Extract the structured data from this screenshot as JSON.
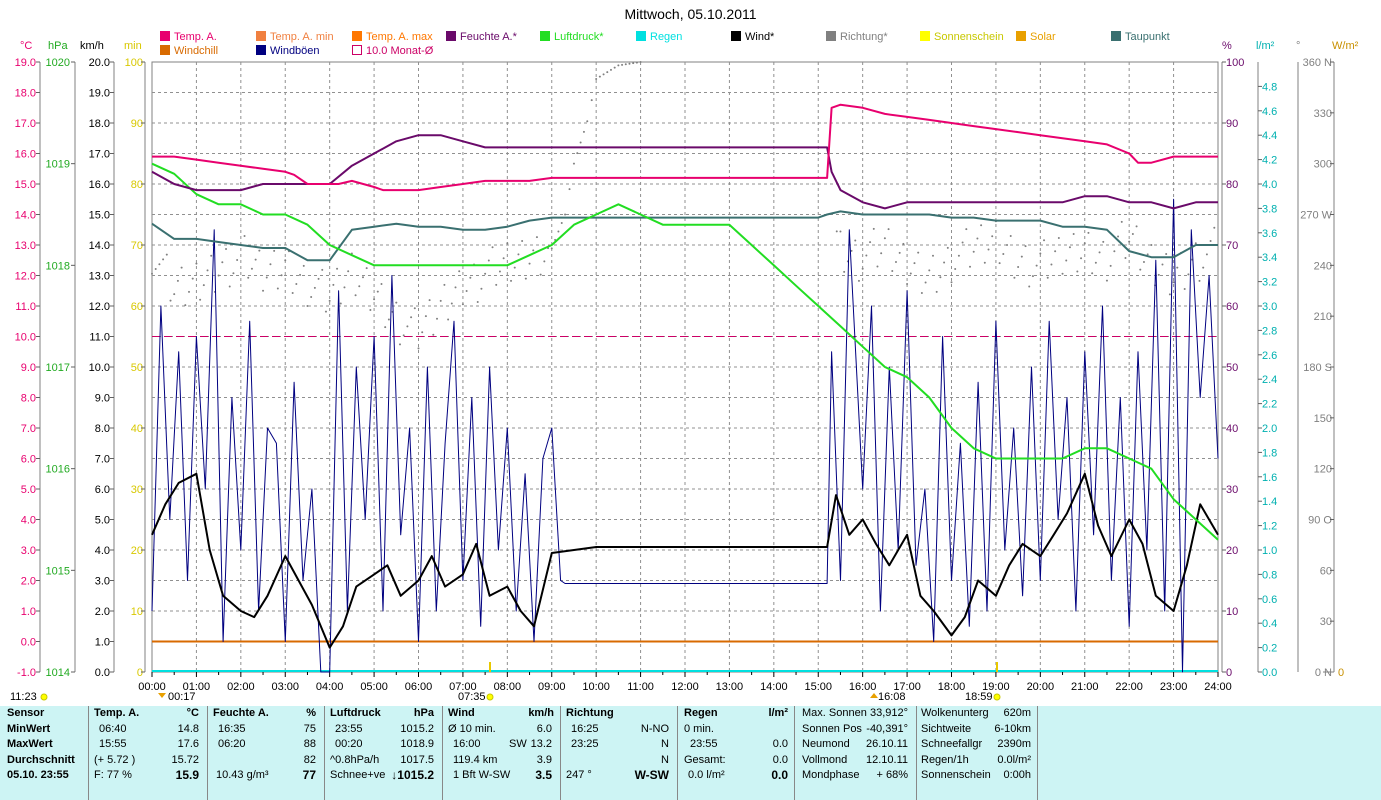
{
  "title": "Mittwoch, 05.10.2011",
  "legend": [
    {
      "label": "Temp. A.",
      "color": "#e8006e"
    },
    {
      "label": "Windchill",
      "color": "#d86a00"
    },
    {
      "label": "Temp. A. min",
      "color": "#f08040"
    },
    {
      "label": "Windböen",
      "color": "#000080"
    },
    {
      "label": "Temp. A. max",
      "color": "#ff7700"
    },
    {
      "label": "10.0 Monat-Ø",
      "color": "#cc0066",
      "open": true
    },
    {
      "label": "Feuchte A.*",
      "color": "#6a0a6a"
    },
    {
      "label": "Luftdruck*",
      "color": "#22dd22"
    },
    {
      "label": "Regen",
      "color": "#00e0e0"
    },
    {
      "label": "Wind*",
      "color": "#000000"
    },
    {
      "label": "Richtung*",
      "color": "#808080"
    },
    {
      "label": "Sonnenschein",
      "color": "#ffff00"
    },
    {
      "label": "Solar",
      "color": "#e8a000"
    },
    {
      "label": "Taupunkt",
      "color": "#3a7070"
    }
  ],
  "axes": {
    "temp": {
      "header": "°C",
      "color": "#e8006e",
      "ticks": [
        "19.0",
        "18.0",
        "17.0",
        "16.0",
        "15.0",
        "14.0",
        "13.0",
        "12.0",
        "11.0",
        "10.0",
        "9.0",
        "8.0",
        "7.0",
        "6.0",
        "5.0",
        "4.0",
        "3.0",
        "2.0",
        "1.0",
        "0.0",
        "-1.0"
      ]
    },
    "hpa": {
      "header": "hPa",
      "color": "#22aa22",
      "ticks": [
        "1020",
        "1019",
        "1018",
        "1017",
        "1016",
        "1015",
        "1014"
      ]
    },
    "kmh": {
      "header": "km/h",
      "color": "#000000",
      "ticks": [
        "20.0",
        "19.0",
        "18.0",
        "17.0",
        "16.0",
        "15.0",
        "14.0",
        "13.0",
        "12.0",
        "11.0",
        "10.0",
        "9.0",
        "8.0",
        "7.0",
        "6.0",
        "5.0",
        "4.0",
        "3.0",
        "2.0",
        "1.0",
        "0.0"
      ]
    },
    "min": {
      "header": "min",
      "color": "#d8c800",
      "ticks": [
        "100",
        "90",
        "80",
        "70",
        "60",
        "50",
        "40",
        "30",
        "20",
        "10",
        "0"
      ]
    },
    "pct": {
      "header": "%",
      "color": "#6a0a6a",
      "ticks": [
        "100",
        "90",
        "80",
        "70",
        "60",
        "50",
        "40",
        "30",
        "20",
        "10",
        "0"
      ]
    },
    "lm2": {
      "header": "l/m²",
      "color": "#00b0b0",
      "ticks": [
        "4.8",
        "4.6",
        "4.4",
        "4.2",
        "4.0",
        "3.8",
        "3.6",
        "3.4",
        "3.2",
        "3.0",
        "2.8",
        "2.6",
        "2.4",
        "2.2",
        "2.0",
        "1.8",
        "1.6",
        "1.4",
        "1.2",
        "1.0",
        "0.8",
        "0.6",
        "0.4",
        "0.2",
        "0.0"
      ]
    },
    "deg": {
      "header": "°",
      "color": "#808080",
      "ticks": [
        "360 N",
        "330",
        "300",
        "270 W",
        "240",
        "210",
        "180 S",
        "150",
        "120",
        "90  O",
        "60",
        "30",
        "0  N"
      ]
    },
    "wm2": {
      "header": "W/m²",
      "color": "#c89000",
      "ticks": [
        "0"
      ]
    },
    "x_ticks": [
      "00:00",
      "01:00",
      "02:00",
      "03:00",
      "04:00",
      "05:00",
      "06:00",
      "07:00",
      "08:00",
      "09:00",
      "10:00",
      "11:00",
      "12:00",
      "13:00",
      "14:00",
      "15:00",
      "16:00",
      "17:00",
      "18:00",
      "19:00",
      "20:00",
      "21:00",
      "22:00",
      "23:00",
      "24:00"
    ]
  },
  "markers": {
    "time_1123": "11:23",
    "time_0017": "00:17",
    "time_0735": "07:35",
    "time_1608": "16:08",
    "time_1859": "18:59"
  },
  "chart_data": {
    "type": "line",
    "title": "Mittwoch, 05.10.2011",
    "x_unit": "hours",
    "xlim": [
      0,
      24
    ],
    "series": [
      {
        "name": "Temp. A.",
        "unit": "°C",
        "x": [
          0,
          0.5,
          1,
          1.5,
          2,
          2.5,
          3,
          3.2,
          3.5,
          4,
          4.2,
          4.5,
          5,
          5.2,
          5.5,
          6,
          6.5,
          7,
          7.5,
          8,
          8.5,
          9,
          10,
          11,
          12,
          13,
          14,
          15,
          15.2,
          15.3,
          15.5,
          16,
          16.5,
          17,
          17.5,
          18,
          18.5,
          19,
          19.5,
          20,
          20.5,
          21,
          21.5,
          22,
          22.2,
          22.5,
          23,
          23.5,
          24
        ],
        "y": [
          15.9,
          15.9,
          15.8,
          15.7,
          15.6,
          15.5,
          15.4,
          15.3,
          15.0,
          15.0,
          15.0,
          15.1,
          14.9,
          14.8,
          14.8,
          14.8,
          14.9,
          15.0,
          15.1,
          15.1,
          15.1,
          15.2,
          15.2,
          15.2,
          15.2,
          15.2,
          15.2,
          15.2,
          15.2,
          17.5,
          17.6,
          17.5,
          17.3,
          17.2,
          17.1,
          17.0,
          16.9,
          16.8,
          16.7,
          16.6,
          16.5,
          16.4,
          16.3,
          16.0,
          15.7,
          15.7,
          15.9,
          15.9,
          15.9
        ]
      },
      {
        "name": "Feuchte A.*",
        "unit": "%",
        "x": [
          0,
          0.5,
          1,
          1.5,
          2,
          2.5,
          3,
          3.5,
          4,
          4.5,
          5,
          5.5,
          6,
          6.5,
          7,
          7.5,
          8,
          8.5,
          9,
          10,
          11,
          12,
          13,
          14,
          15,
          15.2,
          15.3,
          15.5,
          16,
          16.5,
          17,
          17.5,
          18,
          18.5,
          19,
          19.5,
          20,
          20.5,
          21,
          21.5,
          22,
          22.5,
          23,
          23.5,
          24
        ],
        "y": [
          82,
          80,
          79,
          79,
          79,
          80,
          80,
          80,
          80,
          83,
          85,
          87,
          88,
          88,
          87,
          86,
          86,
          86,
          86,
          86,
          86,
          86,
          86,
          86,
          86,
          86,
          82,
          79,
          77,
          76,
          77,
          77,
          77,
          77,
          77,
          77,
          77,
          77,
          78,
          78,
          77,
          77,
          76,
          77,
          77
        ]
      },
      {
        "name": "Luftdruck*",
        "unit": "hPa",
        "x": [
          0,
          0.5,
          1,
          1.5,
          2,
          2.5,
          3,
          3.5,
          4,
          4.5,
          5,
          5.5,
          6,
          6.5,
          7,
          7.5,
          8,
          8.5,
          9,
          9.5,
          10,
          10.5,
          11,
          11.5,
          12,
          12.5,
          13,
          13.5,
          14,
          14.5,
          15,
          15.5,
          16,
          16.5,
          17,
          17.5,
          18,
          18.5,
          19,
          19.5,
          20,
          20.5,
          21,
          21.5,
          22,
          22.5,
          23,
          23.5,
          24
        ],
        "y": [
          1019.0,
          1018.9,
          1018.7,
          1018.6,
          1018.6,
          1018.5,
          1018.5,
          1018.4,
          1018.2,
          1018.1,
          1018.0,
          1018.0,
          1018.0,
          1018.0,
          1018.0,
          1018.0,
          1018.0,
          1018.1,
          1018.2,
          1018.4,
          1018.5,
          1018.6,
          1018.5,
          1018.4,
          1018.4,
          1018.4,
          1018.4,
          1018.2,
          1018.0,
          1017.8,
          1017.6,
          1017.4,
          1017.2,
          1017.0,
          1016.9,
          1016.7,
          1016.4,
          1016.2,
          1016.1,
          1016.1,
          1016.1,
          1016.1,
          1016.2,
          1016.2,
          1016.1,
          1016.0,
          1015.7,
          1015.5,
          1015.3
        ]
      },
      {
        "name": "Taupunkt",
        "unit": "°C",
        "x": [
          0,
          0.5,
          1,
          1.5,
          2,
          2.5,
          3,
          3.5,
          4,
          4.5,
          5,
          5.5,
          6,
          6.5,
          7,
          7.5,
          8,
          8.5,
          9,
          10,
          11,
          12,
          13,
          14,
          15,
          15.2,
          15.5,
          16,
          16.5,
          17,
          17.5,
          18,
          18.5,
          19,
          19.5,
          20,
          20.5,
          21,
          21.5,
          22,
          22.5,
          23,
          23.5,
          24
        ],
        "y": [
          13.7,
          13.2,
          13.2,
          13.1,
          13.0,
          12.9,
          12.9,
          12.5,
          12.5,
          13.5,
          13.6,
          13.7,
          13.6,
          13.6,
          13.5,
          13.5,
          13.6,
          13.8,
          13.9,
          13.9,
          13.9,
          13.9,
          13.9,
          13.9,
          13.9,
          14.0,
          14.1,
          14.0,
          14.0,
          14.0,
          14.0,
          13.9,
          13.9,
          13.8,
          13.8,
          13.8,
          13.6,
          13.6,
          13.5,
          12.8,
          12.6,
          12.6,
          13.0,
          13.0
        ]
      },
      {
        "name": "Wind*",
        "unit": "km/h",
        "x": [
          0,
          0.3,
          0.6,
          1,
          1.3,
          1.6,
          2,
          2.3,
          2.6,
          3,
          3.3,
          3.6,
          4,
          4.3,
          4.6,
          5,
          5.3,
          5.6,
          6,
          6.3,
          6.6,
          7,
          7.3,
          7.6,
          8,
          8.3,
          8.6,
          9,
          9.5,
          10,
          11,
          12,
          13,
          14,
          15,
          15.2,
          15.4,
          15.7,
          16,
          16.3,
          16.6,
          17,
          17.3,
          17.6,
          18,
          18.3,
          18.6,
          19,
          19.3,
          19.6,
          20,
          20.3,
          20.6,
          21,
          21.3,
          21.6,
          22,
          22.3,
          22.6,
          23,
          23.3,
          23.6,
          24
        ],
        "y": [
          4.5,
          5.5,
          6.2,
          6.5,
          4.0,
          2.5,
          2.0,
          1.8,
          2.5,
          3.8,
          3.0,
          2.2,
          0.8,
          1.5,
          2.8,
          3.2,
          3.5,
          2.5,
          3.0,
          3.8,
          2.8,
          3.2,
          4.2,
          2.5,
          2.8,
          2.0,
          1.5,
          3.9,
          4.0,
          4.1,
          4.1,
          4.1,
          4.1,
          4.1,
          4.1,
          4.1,
          5.8,
          4.5,
          5.0,
          4.2,
          3.5,
          4.5,
          2.5,
          2.0,
          1.2,
          1.8,
          3.0,
          2.5,
          3.5,
          4.2,
          3.8,
          4.5,
          5.2,
          6.5,
          4.8,
          3.8,
          5.0,
          4.2,
          2.5,
          2.0,
          3.5,
          5.5,
          4.5
        ]
      },
      {
        "name": "Windböen",
        "unit": "km/h",
        "x": [
          0,
          0.2,
          0.4,
          0.6,
          0.8,
          1,
          1.2,
          1.4,
          1.6,
          1.8,
          2,
          2.2,
          2.4,
          2.6,
          2.8,
          3,
          3.2,
          3.4,
          3.6,
          3.8,
          4,
          4.2,
          4.4,
          4.6,
          4.8,
          5,
          5.2,
          5.4,
          5.6,
          5.8,
          6,
          6.2,
          6.4,
          6.6,
          6.8,
          7,
          7.2,
          7.4,
          7.6,
          7.8,
          8,
          8.2,
          8.4,
          8.6,
          8.8,
          9,
          9.2,
          9.3,
          15.2,
          15.3,
          15.5,
          15.7,
          16,
          16.2,
          16.4,
          16.6,
          16.8,
          17,
          17.2,
          17.4,
          17.6,
          17.8,
          18,
          18.2,
          18.4,
          18.6,
          18.8,
          19,
          19.2,
          19.4,
          19.6,
          19.8,
          20,
          20.2,
          20.4,
          20.6,
          20.8,
          21,
          21.2,
          21.4,
          21.6,
          21.8,
          22,
          22.2,
          22.4,
          22.6,
          22.8,
          23,
          23.2,
          23.4,
          23.6,
          23.8,
          24
        ],
        "y": [
          2.0,
          12.0,
          5.0,
          10.5,
          3.0,
          11.0,
          6.0,
          14.5,
          1.0,
          9.0,
          4.0,
          11.5,
          2.0,
          8.0,
          7.5,
          1.0,
          9.5,
          3.0,
          6.0,
          0.0,
          0.0,
          12.5,
          2.0,
          10.0,
          5.0,
          11.0,
          2.0,
          13.0,
          4.5,
          8.0,
          1.0,
          10.0,
          2.0,
          7.5,
          11.5,
          3.0,
          9.0,
          1.5,
          10.0,
          4.0,
          8.0,
          2.0,
          6.5,
          1.0,
          7.0,
          8.0,
          3.0,
          2.9,
          2.9,
          10.5,
          3.0,
          14.5,
          6.0,
          12.0,
          2.0,
          10.0,
          4.0,
          12.5,
          3.5,
          6.0,
          1.0,
          11.0,
          3.0,
          7.5,
          1.5,
          9.5,
          2.0,
          11.5,
          4.0,
          8.0,
          2.5,
          10.0,
          3.0,
          11.5,
          5.0,
          9.0,
          2.0,
          10.5,
          4.5,
          12.0,
          3.0,
          9.0,
          1.5,
          10.5,
          4.0,
          13.5,
          2.0,
          15.5,
          0.0,
          14.5,
          9.0,
          13.0,
          7.0
        ]
      },
      {
        "name": "Richtung*",
        "unit": "°",
        "x": [
          0,
          0.5,
          1,
          1.5,
          2,
          2.5,
          3,
          3.5,
          4,
          4.5,
          5,
          5.5,
          6,
          6.5,
          7,
          7.5,
          8,
          8.5,
          9,
          9.3,
          9.5,
          9.8,
          10,
          10.5,
          11,
          15.5,
          16,
          16.5,
          17,
          17.5,
          18,
          18.5,
          19,
          19.5,
          20,
          20.5,
          21,
          21.5,
          22,
          22.5,
          23,
          23.5,
          24
        ],
        "y": [
          250,
          225,
          230,
          240,
          245,
          235,
          240,
          230,
          220,
          235,
          225,
          210,
          200,
          215,
          230,
          235,
          240,
          245,
          250,
          270,
          300,
          325,
          350,
          358,
          360,
          250,
          245,
          250,
          240,
          235,
          245,
          250,
          255,
          245,
          240,
          245,
          250,
          245,
          255,
          240,
          235,
          245,
          250
        ]
      },
      {
        "name": "Temp. A. min",
        "unit": "°C",
        "x": [
          0,
          24
        ],
        "y": [
          0.0,
          0.0
        ]
      },
      {
        "name": "10.0 Monat-Ø",
        "unit": "°C",
        "x": [
          0,
          24
        ],
        "y": [
          10.0,
          10.0
        ]
      }
    ],
    "sun_markers": {
      "sunrise": "07:35",
      "sunset": "18:59"
    },
    "grid": true
  },
  "stats": {
    "col1": {
      "r0": "Sensor",
      "r1": "MinWert",
      "r2": "MaxWert",
      "r3": "Durchschnitt",
      "r4": "05.10. 23:55"
    },
    "col2": {
      "h_name": "Temp. A.",
      "h_unit": "°C",
      "min_t": "06:40",
      "min_v": "14.8",
      "max_t": "15:55",
      "max_v": "17.6",
      "avg_t": "(+ 5.72 )",
      "avg_v": "15.72",
      "cur_l": "F: 77 %",
      "cur_v": "15.9"
    },
    "col3": {
      "h_name": "Feuchte A.",
      "h_unit": "%",
      "min_t": "16:35",
      "min_v": "75",
      "max_t": "06:20",
      "max_v": "88",
      "avg_v": "82",
      "cur_l": "10.43 g/m³",
      "cur_v": "77"
    },
    "col4": {
      "h_name": "Luftdruck",
      "h_unit": "hPa",
      "min_t": "23:55",
      "min_v": "1015.2",
      "max_t": "00:20",
      "max_v": "1018.9",
      "avg_t": "^0.8hPa/h",
      "avg_v": "1017.5",
      "cur_l": "Schnee+ve",
      "cur_v": "↓1015.2"
    },
    "col5": {
      "h_name": "Wind",
      "h_unit": "km/h",
      "r1_l": "Ø 10 min.",
      "r1_v": "6.0",
      "r2_t": "16:00",
      "r2_d": "SW",
      "r2_v": "13.2",
      "r3_l": "119.4 km",
      "r3_v": "3.9",
      "cur_l": "1 Bft W-SW",
      "cur_v": "3.5"
    },
    "col6": {
      "h_name": "Richtung",
      "r1_t": "16:25",
      "r1_v": "N-NO",
      "r2_t": "23:25",
      "r2_v": "N",
      "r3_v": "N",
      "cur_l": "247 °",
      "cur_v": "W-SW"
    },
    "col7": {
      "h_name": "Regen",
      "h_unit": "l/m²",
      "r1_l": "0 min.",
      "r2_t": "23:55",
      "r2_v": "0.0",
      "r3_l": "Gesamt:",
      "r3_v": "0.0",
      "cur_l": "0.0 l/m²",
      "cur_v": "0.0"
    },
    "col8": {
      "r0_l": "Max. Sonnen",
      "r0_v": "33,912°",
      "r1_l": "Sonnen Pos",
      "r1_v": "-40,391°",
      "r2_l": "Neumond",
      "r2_v": "26.10.11",
      "r3_l": "Vollmond",
      "r3_v": "12.10.11",
      "r4_l": "Mondphase",
      "r4_v": "+ 68%"
    },
    "col9": {
      "r0_l": "Wolkenunterg",
      "r0_v": "620m",
      "r1_l": "Sichtweite",
      "r1_v": "6-10km",
      "r2_l": "Schneefallgr",
      "r2_v": "2390m",
      "r3_l": "Regen/1h",
      "r3_v": "0.0l/m²",
      "r4_l": "Sonnenschein",
      "r4_v": "0:00h"
    }
  }
}
